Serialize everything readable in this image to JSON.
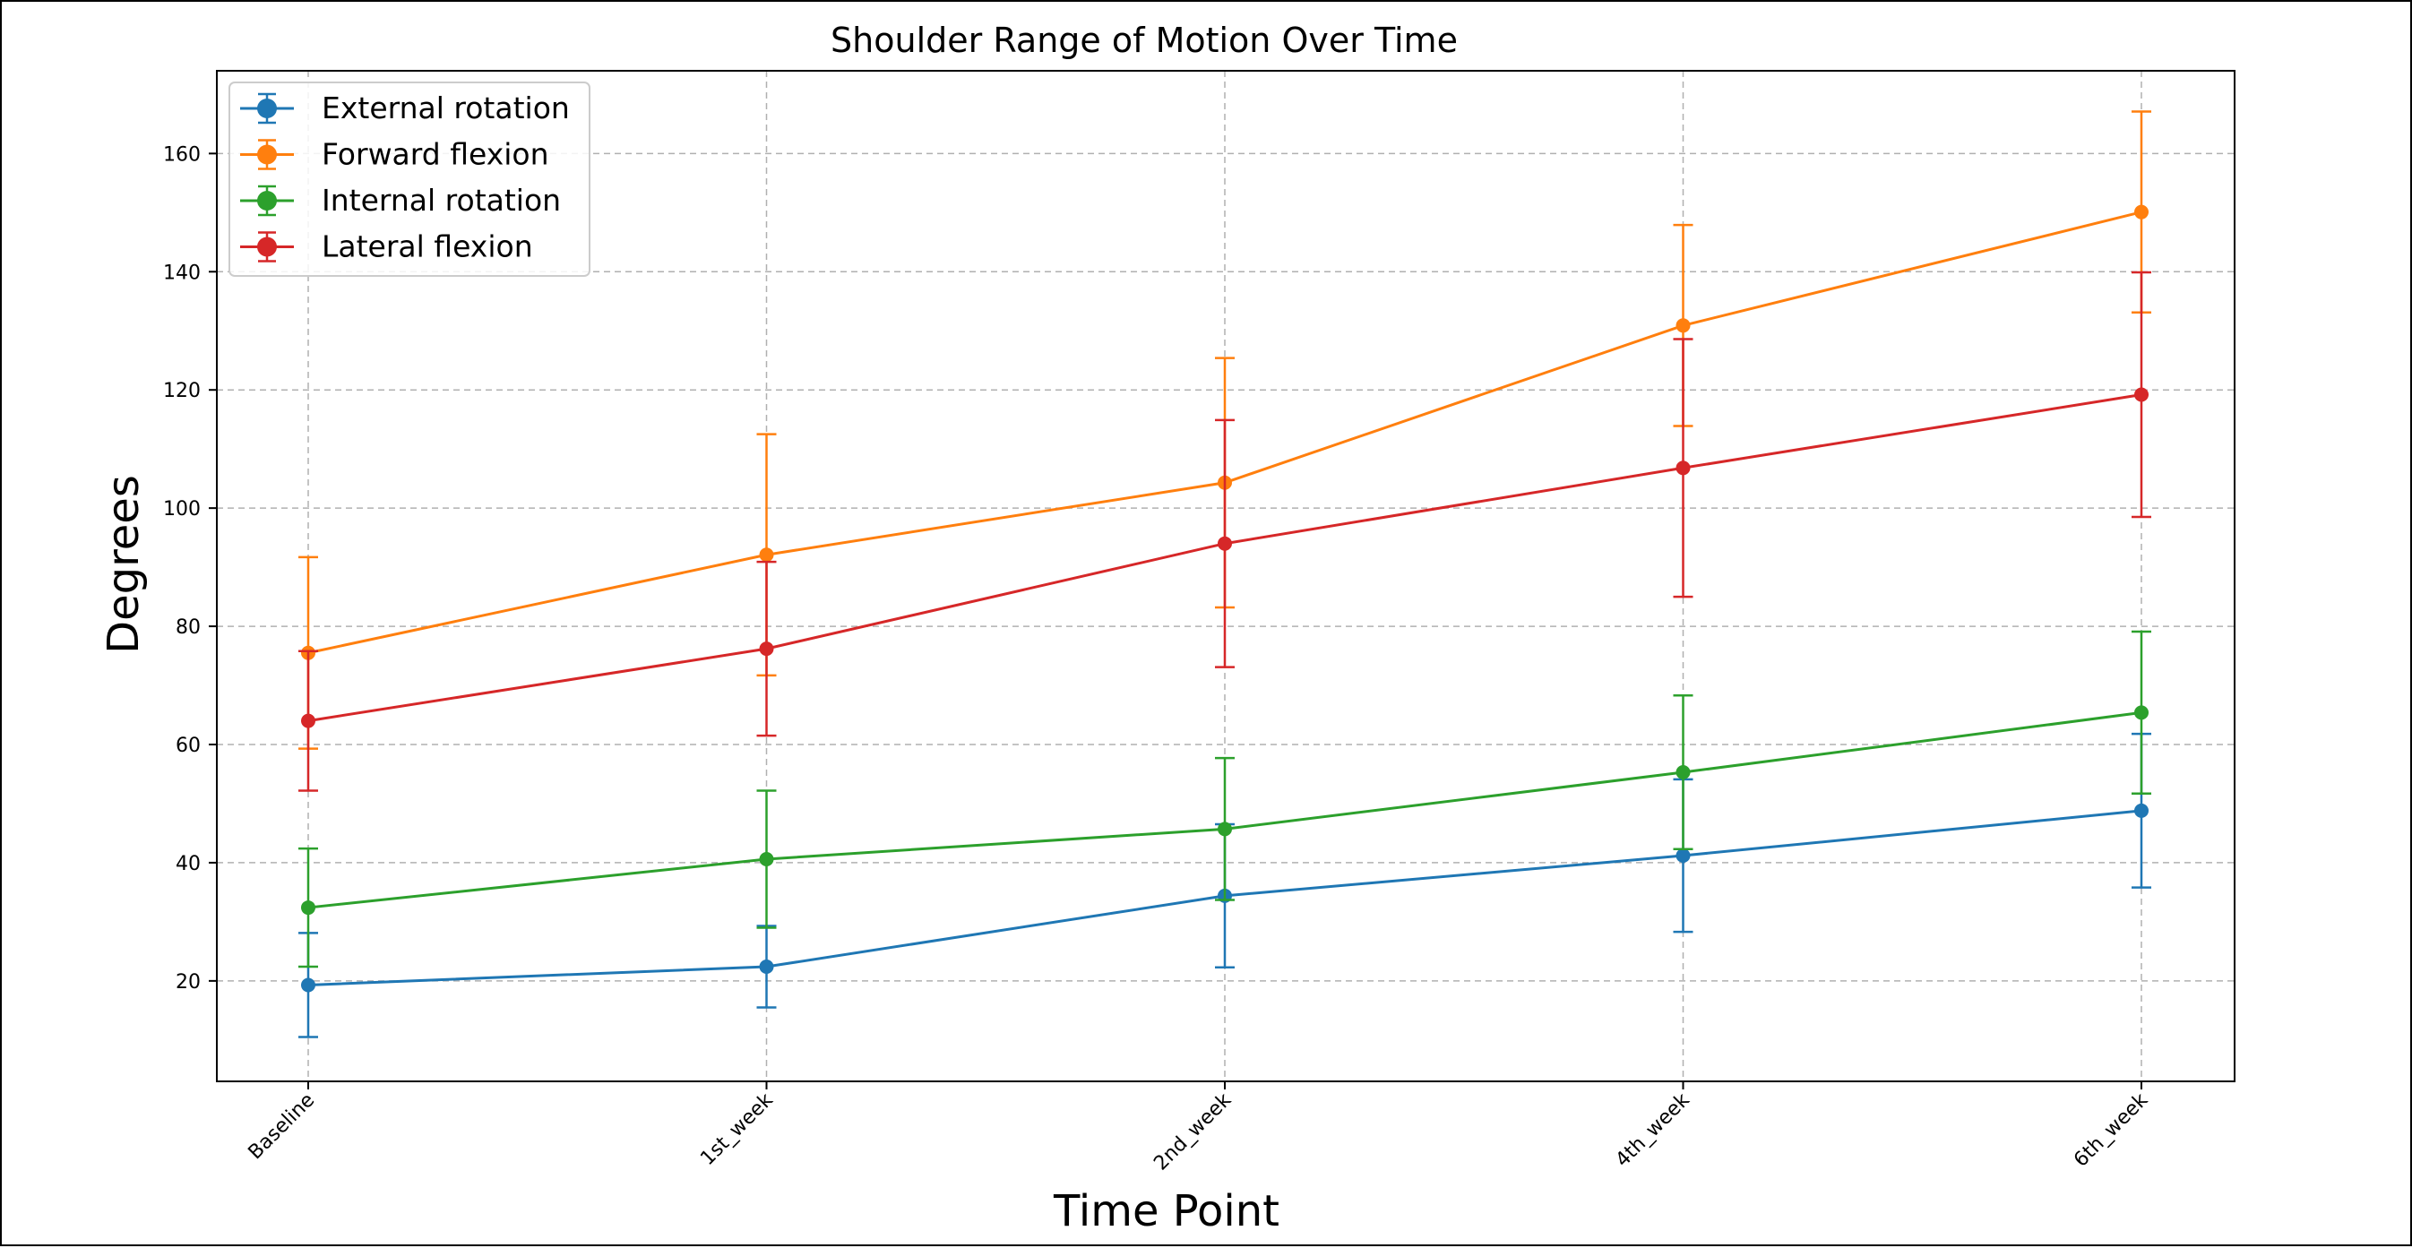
{
  "chart_data": {
    "type": "line",
    "title": "Shoulder Range of Motion Over Time",
    "xlabel": "Time Point",
    "ylabel": "Degrees",
    "categories": [
      "Baseline",
      "1st_week",
      "2nd_week",
      "4th_week",
      "6th_week"
    ],
    "ylim": [
      3,
      174
    ],
    "yticks": [
      20,
      40,
      60,
      80,
      100,
      120,
      140,
      160
    ],
    "grid": true,
    "legend_position": "upper-left",
    "error_bars": true,
    "series": [
      {
        "name": "External rotation",
        "color": "#1f77b4",
        "values": [
          19.3,
          22.4,
          34.4,
          41.2,
          48.8
        ],
        "errors": [
          8.8,
          6.9,
          12.1,
          12.9,
          13.0
        ]
      },
      {
        "name": "Forward flexion",
        "color": "#ff7f0e",
        "values": [
          75.5,
          92.1,
          104.3,
          130.9,
          150.1
        ],
        "errors": [
          16.2,
          20.4,
          21.1,
          17.0,
          17.0
        ]
      },
      {
        "name": "Internal rotation",
        "color": "#2ca02c",
        "values": [
          32.4,
          40.6,
          45.7,
          55.3,
          65.4
        ],
        "errors": [
          10.0,
          11.6,
          12.0,
          13.0,
          13.7
        ]
      },
      {
        "name": "Lateral flexion",
        "color": "#d62728",
        "values": [
          64.0,
          76.2,
          94.0,
          106.8,
          119.2
        ],
        "errors": [
          11.8,
          14.7,
          20.9,
          21.8,
          20.7
        ]
      }
    ]
  }
}
